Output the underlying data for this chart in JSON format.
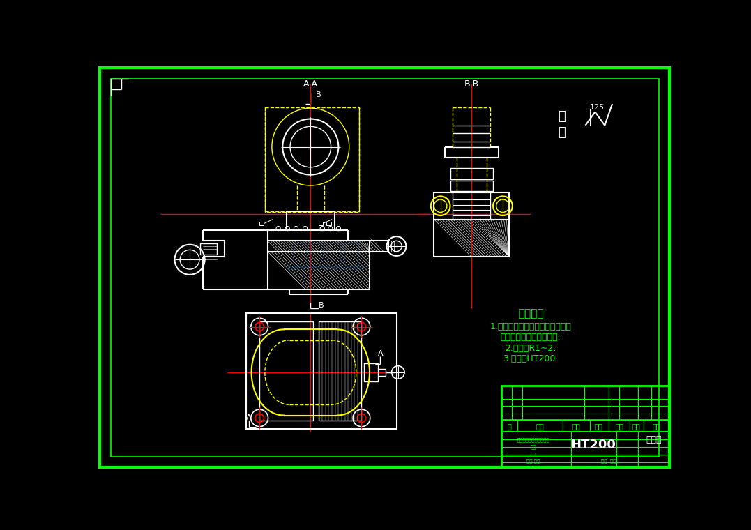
{
  "bg_color": "#000000",
  "white": "#ffffff",
  "yellow": "#ffff00",
  "red": "#ff0000",
  "green": "#00ff00",
  "title_text": "技术要求",
  "tech_req1": "1.零件在装配前必须清理干净，不",
  "tech_req2": "得有毛刺、飞边、切屑等.",
  "tech_req3": "2.圆角：R1~2.",
  "tech_req4": "3.材料：HT200.",
  "section_aa": "A-A",
  "section_bb": "B-B",
  "surface_finish": "125",
  "material": "HT200",
  "watermark": "www.renrendoc.com"
}
